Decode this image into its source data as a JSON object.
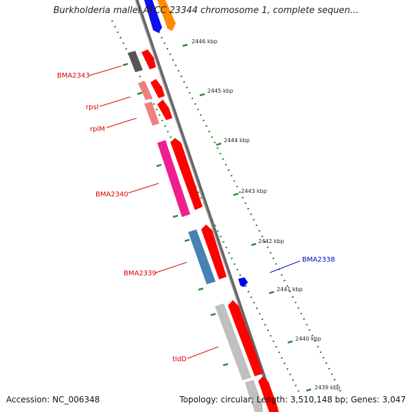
{
  "title": "Burkholderia mallei ATCC 23344 chromosome 1, complete sequen...",
  "footer": {
    "accession": "Accession: NC_006348",
    "topology": "Topology: circular; Length: 3,510,148 bp; Genes: 3,047"
  },
  "colors": {
    "backbone": "#808080",
    "tick_green": "#2e8b2e",
    "forward_strand": "#ff0000",
    "label_red": "#dd0000",
    "label_blue": "#0000cc"
  },
  "scale": {
    "unit": "kbp",
    "ticks": [
      "2446 kbp",
      "2445 kbp",
      "2444 kbp",
      "2443 kbp",
      "2442 kbp",
      "2441 kbp",
      "2440 kbp",
      "2439 kbp"
    ]
  },
  "genes": [
    {
      "label": "BMA2343",
      "color": "#555555",
      "label_color": "#dd0000"
    },
    {
      "label": "rpsI",
      "color": "#f08080",
      "label_color": "#dd0000"
    },
    {
      "label": "rplM",
      "color": "#f08080",
      "label_color": "#dd0000"
    },
    {
      "label": "BMA2340",
      "color": "#ee2090",
      "label_color": "#dd0000"
    },
    {
      "label": "BMA2339",
      "color": "#4682b4",
      "label_color": "#dd0000"
    },
    {
      "label": "tldD",
      "color": "#c0c0c0",
      "label_color": "#dd0000"
    },
    {
      "label": "BMA2338",
      "color": "#0000ee",
      "label_color": "#0000cc"
    }
  ]
}
